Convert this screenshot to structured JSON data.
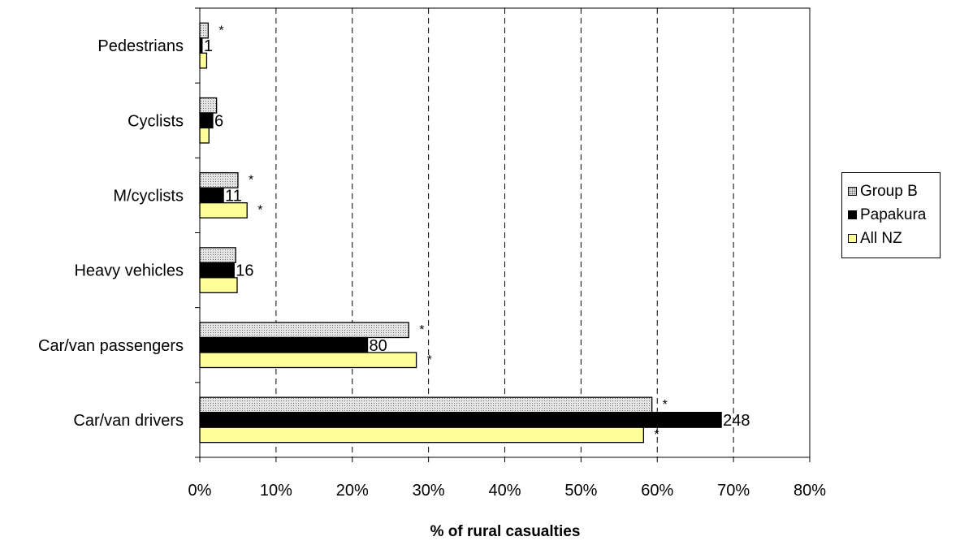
{
  "chart_data": {
    "type": "bar",
    "orientation": "horizontal",
    "categories": [
      "Pedestrians",
      "Cyclists",
      "M/cyclists",
      "Heavy vehicles",
      "Car/van passengers",
      "Car/van drivers"
    ],
    "series": [
      {
        "name": "Group B",
        "color": "#e0e0e0",
        "values": [
          1.1,
          2.2,
          5.0,
          4.7,
          27.4,
          59.3
        ]
      },
      {
        "name": "Papakura",
        "color": "#000000",
        "values": [
          0.3,
          1.7,
          3.1,
          4.5,
          22.0,
          68.4
        ]
      },
      {
        "name": "All NZ",
        "color": "#ffff99",
        "values": [
          0.9,
          1.2,
          6.2,
          4.9,
          28.4,
          58.2
        ]
      }
    ],
    "papakura_counts": [
      "1",
      "6",
      "11",
      "16",
      "80",
      "248"
    ],
    "significance": [
      [
        "*",
        "",
        ""
      ],
      [
        "",
        "",
        ""
      ],
      [
        "*",
        "",
        "*"
      ],
      [
        "",
        "",
        ""
      ],
      [
        "*",
        "",
        "*"
      ],
      [
        "*",
        "",
        "*"
      ]
    ],
    "xlabel": "% of rural casualties",
    "xlim": [
      0,
      80
    ],
    "xticks": [
      "0%",
      "10%",
      "20%",
      "30%",
      "40%",
      "50%",
      "60%",
      "70%",
      "80%"
    ],
    "grid": "vertical dashed",
    "legend_position": "right"
  }
}
